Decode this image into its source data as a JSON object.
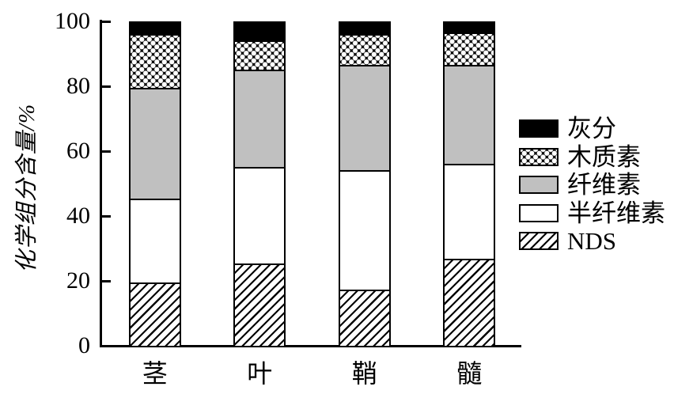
{
  "figure": {
    "kind": "stacked-bar-chart"
  },
  "colors": {
    "bar_gray": "#c0c0c0",
    "ink": "#000000",
    "background": "#ffffff"
  },
  "chart_data": {
    "type": "bar",
    "stacked": true,
    "title": "",
    "xlabel": "",
    "ylabel": "化学组分含量/%",
    "ylim": [
      0,
      100
    ],
    "yticks": [
      0,
      20,
      40,
      60,
      80,
      100
    ],
    "grid": false,
    "legend_position": "right",
    "categories": [
      "茎",
      "叶",
      "鞘",
      "髓"
    ],
    "series": [
      {
        "name": "NDS",
        "pattern": "diagonal-hatch",
        "values": [
          19,
          25,
          17,
          26.5
        ]
      },
      {
        "name": "半纤维素",
        "pattern": "white",
        "values": [
          26,
          30,
          37,
          29.5
        ]
      },
      {
        "name": "纤维素",
        "pattern": "gray",
        "values": [
          34.5,
          30,
          32.5,
          30.5
        ]
      },
      {
        "name": "木质素",
        "pattern": "dot-crosshatch",
        "values": [
          16.5,
          9,
          9.5,
          10
        ]
      },
      {
        "name": "灰分",
        "pattern": "black",
        "values": [
          4,
          6,
          4,
          3.5
        ]
      }
    ],
    "legend_order_top_to_bottom": [
      "灰分",
      "木质素",
      "纤维素",
      "半纤维素",
      "NDS"
    ]
  }
}
